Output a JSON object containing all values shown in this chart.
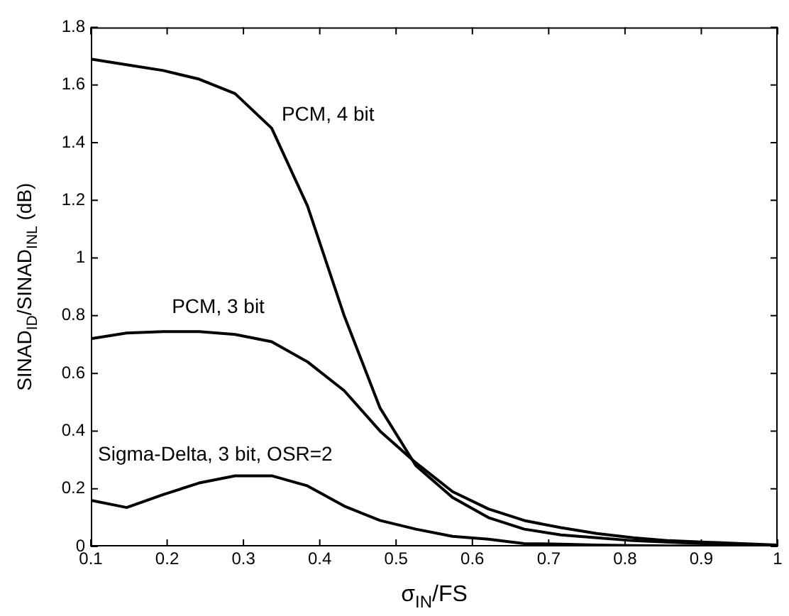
{
  "chart_data": {
    "type": "line",
    "xlabel": "σ$_{IN}$/FS",
    "ylabel": "SINAD$_{ID}$/SINAD$_{INL}$ (dB)",
    "x": [
      0.1,
      0.147,
      0.195,
      0.242,
      0.289,
      0.337,
      0.384,
      0.432,
      0.479,
      0.526,
      0.574,
      0.621,
      0.668,
      0.716,
      0.763,
      0.811,
      0.858,
      0.905,
      0.953,
      1
    ],
    "series": [
      {
        "name": "PCM, 4 bit",
        "color": "#000000",
        "values": [
          1.69,
          1.67,
          1.65,
          1.62,
          1.57,
          1.45,
          1.18,
          0.8,
          0.48,
          0.28,
          0.17,
          0.1,
          0.06,
          0.04,
          0.03,
          0.02,
          0.015,
          0.01,
          0.005,
          0.005
        ]
      },
      {
        "name": "PCM, 3 bit",
        "color": "#000000",
        "values": [
          0.72,
          0.74,
          0.745,
          0.745,
          0.735,
          0.71,
          0.64,
          0.54,
          0.4,
          0.29,
          0.19,
          0.13,
          0.09,
          0.065,
          0.045,
          0.03,
          0.02,
          0.015,
          0.01,
          0.005
        ]
      },
      {
        "name": "Sigma-Delta, 3 bit, OSR=2",
        "color": "#000000",
        "values": [
          0.16,
          0.135,
          0.18,
          0.22,
          0.245,
          0.245,
          0.21,
          0.14,
          0.09,
          0.06,
          0.035,
          0.025,
          0.01,
          0.008,
          0.005,
          0.003,
          0.002,
          0.001,
          0,
          0
        ]
      }
    ],
    "xlim": [
      0.1,
      1
    ],
    "xticks": [
      0.1,
      0.2,
      0.3,
      0.4,
      0.5,
      0.6,
      0.7,
      0.8,
      0.9,
      1
    ],
    "ylim": [
      0,
      1.8
    ],
    "yticks": [
      0,
      0.2,
      0.4,
      0.6,
      0.8,
      1,
      1.2,
      1.4,
      1.6,
      1.8
    ],
    "grid": false,
    "legend": false,
    "marker": "none",
    "line_style": "solid"
  }
}
